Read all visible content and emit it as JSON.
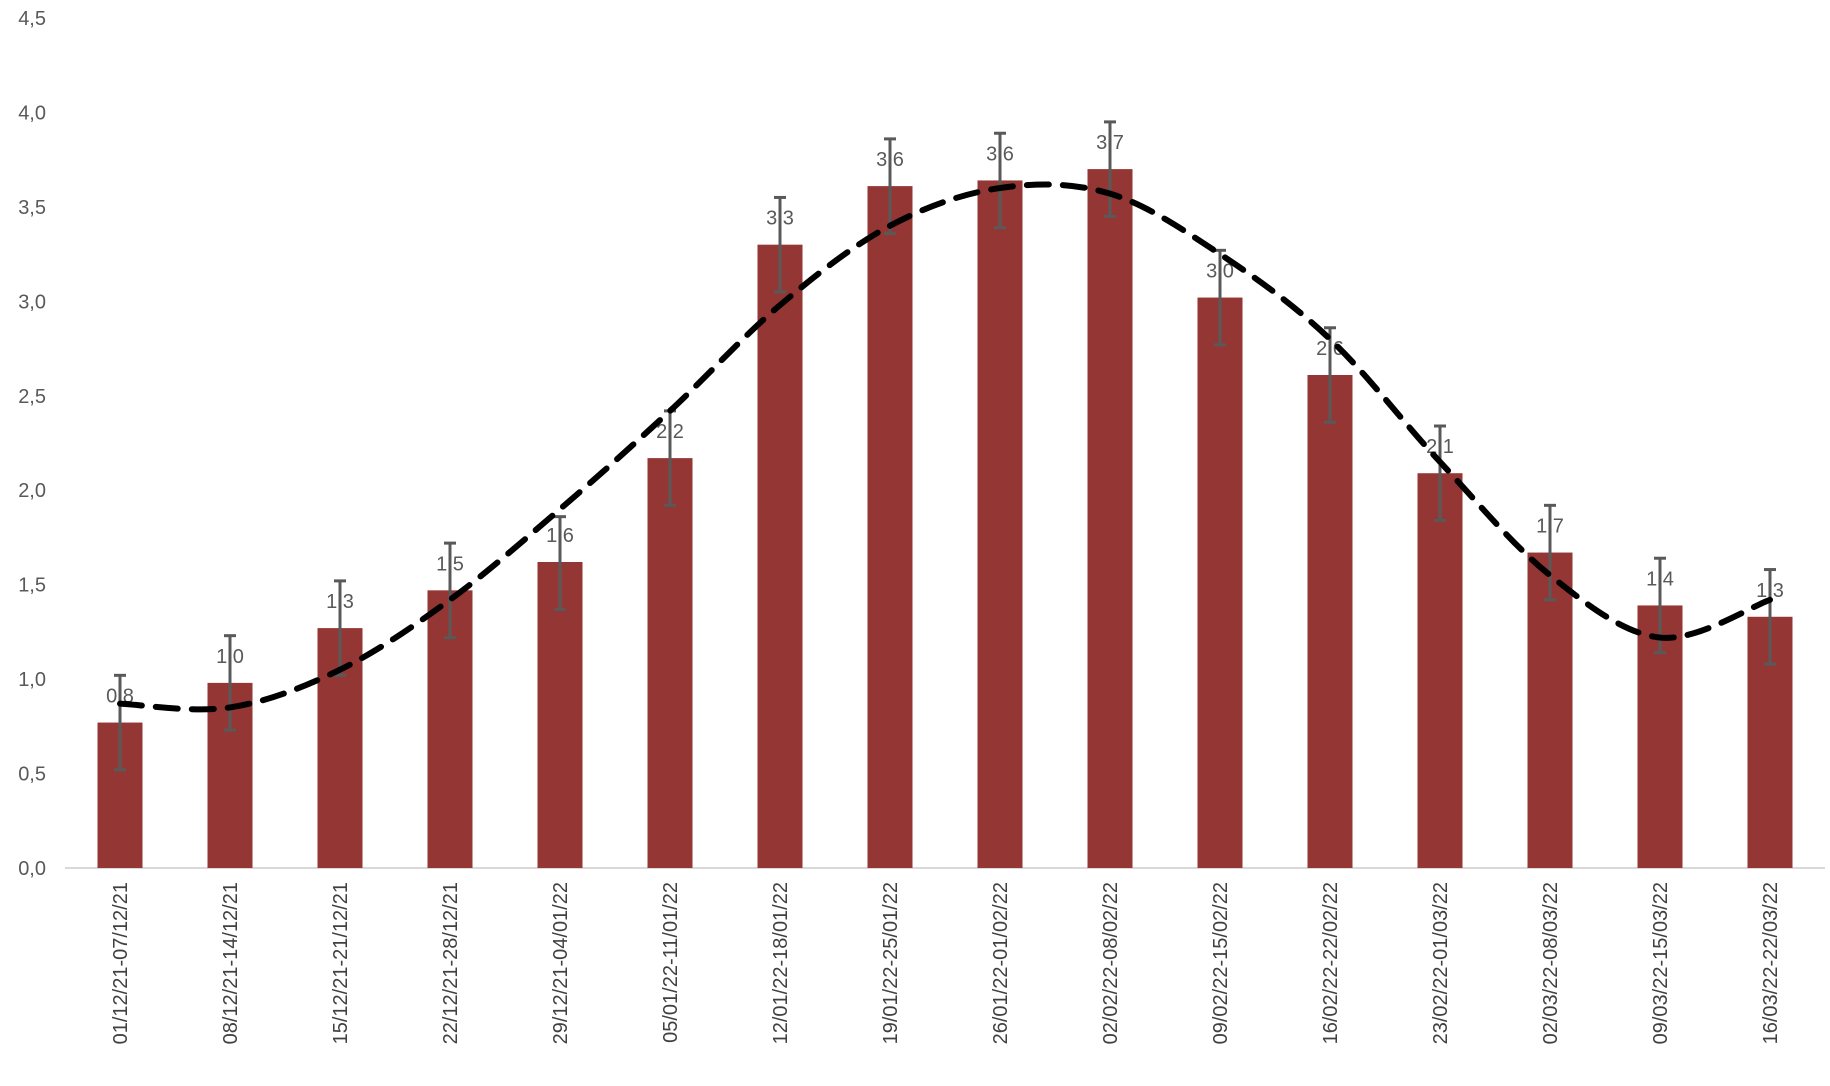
{
  "chart_data": {
    "type": "bar",
    "title": "",
    "xlabel": "",
    "ylabel": "",
    "ylim": [
      0,
      4.5
    ],
    "yticks": [
      "0,0",
      "0,5",
      "1,0",
      "1,5",
      "2,0",
      "2,5",
      "3,0",
      "3,5",
      "4,0",
      "4,5"
    ],
    "grid": false,
    "legend": "none",
    "categories": [
      "01/12/21-07/12/21",
      "08/12/21-14/12/21",
      "15/12/21-21/12/21",
      "22/12/21-28/12/21",
      "29/12/21-04/01/22",
      "05/01/22-11/01/22",
      "12/01/22-18/01/22",
      "19/01/22-25/01/22",
      "26/01/22-01/02/22",
      "02/02/22-08/02/22",
      "09/02/22-15/02/22",
      "16/02/22-22/02/22",
      "23/02/22-01/03/22",
      "02/03/22-08/03/22",
      "09/03/22-15/03/22",
      "16/03/22-22/03/22"
    ],
    "series": [
      {
        "type": "bar",
        "color": "#943634",
        "values": [
          0.77,
          0.98,
          1.27,
          1.47,
          1.62,
          2.17,
          3.3,
          3.61,
          3.64,
          3.7,
          3.02,
          2.61,
          2.09,
          1.67,
          1.39,
          1.33
        ],
        "data_labels": [
          "0,8",
          "1,0",
          "1,3",
          "1,5",
          "1,6",
          "2,2",
          "3,3",
          "3,6",
          "3,6",
          "3,7",
          "3,0",
          "2,6",
          "2,1",
          "1,7",
          "1,4",
          "1,3"
        ],
        "error_low": [
          0.52,
          0.73,
          1.02,
          1.22,
          1.37,
          1.92,
          3.05,
          3.36,
          3.39,
          3.45,
          2.77,
          2.36,
          1.84,
          1.42,
          1.14,
          1.08
        ],
        "error_high": [
          1.02,
          1.23,
          1.52,
          1.72,
          1.86,
          2.42,
          3.55,
          3.86,
          3.89,
          3.95,
          3.27,
          2.86,
          2.34,
          1.92,
          1.64,
          1.58
        ],
        "error_color": "#595959"
      },
      {
        "type": "line",
        "style": "dashed",
        "color": "#000000",
        "values": [
          0.87,
          0.85,
          1.05,
          1.42,
          1.9,
          2.42,
          2.98,
          3.4,
          3.6,
          3.57,
          3.25,
          2.8,
          2.15,
          1.55,
          1.22,
          1.42
        ]
      }
    ]
  }
}
